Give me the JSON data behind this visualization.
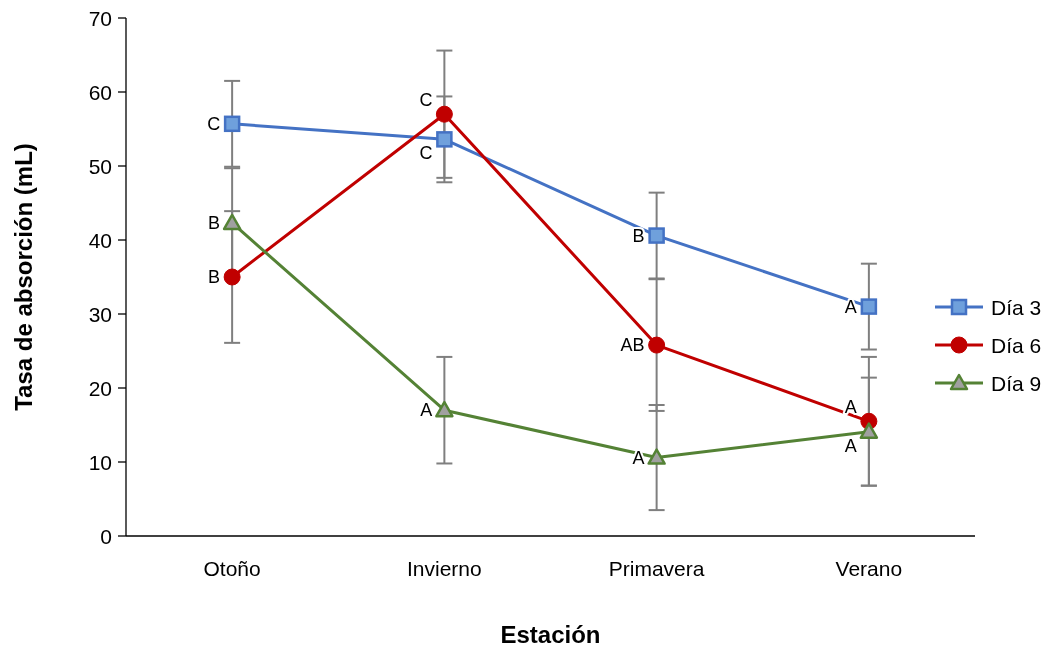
{
  "chart_data": {
    "type": "line",
    "xlabel": "Estación",
    "ylabel": "Tasa de absorción (mL)",
    "categories": [
      "Otoño",
      "Invierno",
      "Primavera",
      "Verano"
    ],
    "series": [
      {
        "name": "Día 3",
        "color": "#4472c4",
        "marker": "square",
        "values": [
          55.7,
          53.6,
          40.6,
          31.0
        ],
        "errors": [
          5.8,
          5.8,
          5.8,
          5.8
        ]
      },
      {
        "name": "Día 6",
        "color": "#c00000",
        "marker": "circle",
        "values": [
          35.0,
          57.0,
          25.8,
          15.5
        ],
        "errors": [
          8.9,
          8.6,
          8.9,
          8.7
        ]
      },
      {
        "name": "Día 9",
        "color": "#548235",
        "marker": "triangle",
        "values": [
          42.3,
          17.0,
          10.6,
          14.1
        ],
        "errors": [
          7.4,
          7.2,
          7.1,
          7.3
        ]
      }
    ],
    "annotations": [
      {
        "text": "C",
        "x": "Otoño",
        "y": 55.7
      },
      {
        "text": "B",
        "x": "Otoño",
        "y": 35.0
      },
      {
        "text": "B",
        "x": "Otoño",
        "y": 42.3
      },
      {
        "text": "C",
        "x": "Invierno",
        "y": 53.6
      },
      {
        "text": "C",
        "x": "Invierno",
        "y": 57.0
      },
      {
        "text": "A",
        "x": "Invierno",
        "y": 17.0
      },
      {
        "text": "B",
        "x": "Primavera",
        "y": 40.6
      },
      {
        "text": "AB",
        "x": "Primavera",
        "y": 25.8
      },
      {
        "text": "A",
        "x": "Primavera",
        "y": 10.6
      },
      {
        "text": "A",
        "x": "Verano",
        "y": 31.0
      },
      {
        "text": "A",
        "x": "Verano",
        "y": 15.5
      },
      {
        "text": "A",
        "x": "Verano",
        "y": 14.1
      }
    ],
    "ylim": [
      0,
      70
    ],
    "yticks": [
      0,
      10,
      20,
      30,
      40,
      50,
      60,
      70
    ],
    "grid": false,
    "legend": "right"
  }
}
